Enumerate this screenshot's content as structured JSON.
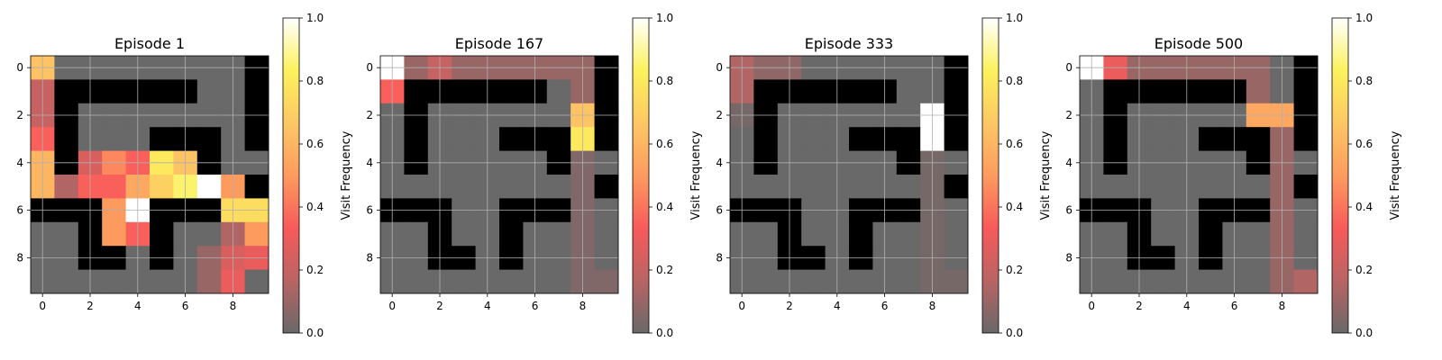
{
  "chart_data": [
    {
      "type": "heatmap",
      "title": "Episode 1",
      "colorbar_label": "Visit Frequency",
      "grid": true,
      "xlim": [
        -0.5,
        9.5
      ],
      "ylim": [
        9.5,
        -0.5
      ],
      "xticks": [
        0,
        2,
        4,
        6,
        8
      ],
      "yticks": [
        0,
        2,
        4,
        6,
        8
      ],
      "colorbar_ticks": [
        "0.0",
        "0.2",
        "0.4",
        "0.6",
        "0.8",
        "1.0"
      ],
      "colorbar_range": [
        0.0,
        1.0
      ],
      "values": [
        [
          0.65,
          0.0,
          0.0,
          0.0,
          0.0,
          0.0,
          0.0,
          0.0,
          0.0,
          -1
        ],
        [
          0.2,
          -1,
          -1,
          -1,
          -1,
          -1,
          -1,
          0.0,
          0.0,
          -1
        ],
        [
          0.2,
          -1,
          0.0,
          0.0,
          0.0,
          0.0,
          0.0,
          0.0,
          0.0,
          -1
        ],
        [
          0.35,
          -1,
          0.0,
          0.0,
          0.0,
          -1,
          -1,
          -1,
          0.0,
          -1
        ],
        [
          0.6,
          -1,
          0.25,
          0.45,
          0.35,
          0.8,
          0.65,
          -1,
          0.0,
          0.0
        ],
        [
          0.6,
          0.15,
          0.35,
          0.35,
          0.55,
          0.7,
          0.85,
          1.0,
          0.5,
          -1
        ],
        [
          -1,
          -1,
          -1,
          0.5,
          1.0,
          -1,
          -1,
          -1,
          0.75,
          0.75
        ],
        [
          0.0,
          0.0,
          -1,
          0.5,
          0.35,
          -1,
          0.0,
          0.0,
          0.15,
          0.5
        ],
        [
          0.0,
          0.0,
          -1,
          -1,
          0.0,
          -1,
          0.0,
          0.1,
          0.25,
          0.3
        ],
        [
          0.0,
          0.0,
          0.0,
          0.0,
          0.0,
          0.0,
          0.0,
          0.1,
          0.3,
          0.0
        ]
      ]
    },
    {
      "type": "heatmap",
      "title": "Episode 167",
      "colorbar_label": "Visit Frequency",
      "grid": true,
      "xlim": [
        -0.5,
        9.5
      ],
      "ylim": [
        9.5,
        -0.5
      ],
      "xticks": [
        0,
        2,
        4,
        6,
        8
      ],
      "yticks": [
        0,
        2,
        4,
        6,
        8
      ],
      "colorbar_ticks": [
        "0.0",
        "0.2",
        "0.4",
        "0.6",
        "0.8",
        "1.0"
      ],
      "colorbar_range": [
        0.0,
        1.0
      ],
      "values": [
        [
          1.0,
          0.1,
          0.2,
          0.1,
          0.1,
          0.1,
          0.1,
          0.1,
          0.1,
          -1
        ],
        [
          0.35,
          -1,
          -1,
          -1,
          -1,
          -1,
          -1,
          0.0,
          0.1,
          -1
        ],
        [
          0.0,
          -1,
          0.0,
          0.0,
          0.0,
          0.0,
          0.0,
          0.0,
          0.65,
          -1
        ],
        [
          0.0,
          -1,
          0.0,
          0.0,
          0.0,
          -1,
          -1,
          -1,
          0.8,
          -1
        ],
        [
          0.0,
          -1,
          0.0,
          0.0,
          0.0,
          0.0,
          0.0,
          -1,
          0.05,
          0.0
        ],
        [
          0.0,
          0.0,
          0.0,
          0.0,
          0.0,
          0.0,
          0.0,
          0.0,
          0.05,
          -1
        ],
        [
          -1,
          -1,
          -1,
          0.0,
          0.0,
          -1,
          -1,
          -1,
          0.05,
          0.0
        ],
        [
          0.0,
          0.0,
          -1,
          0.0,
          0.0,
          -1,
          0.0,
          0.0,
          0.05,
          0.0
        ],
        [
          0.0,
          0.0,
          -1,
          -1,
          0.0,
          -1,
          0.0,
          0.0,
          0.05,
          0.0
        ],
        [
          0.0,
          0.0,
          0.0,
          0.0,
          0.0,
          0.0,
          0.0,
          0.0,
          0.05,
          0.05
        ]
      ]
    },
    {
      "type": "heatmap",
      "title": "Episode 333",
      "colorbar_label": "Visit Frequency",
      "grid": true,
      "xlim": [
        -0.5,
        9.5
      ],
      "ylim": [
        9.5,
        -0.5
      ],
      "xticks": [
        0,
        2,
        4,
        6,
        8
      ],
      "yticks": [
        0,
        2,
        4,
        6,
        8
      ],
      "colorbar_ticks": [
        "0.0",
        "0.2",
        "0.4",
        "0.6",
        "0.8",
        "1.0"
      ],
      "colorbar_range": [
        0.0,
        1.0
      ],
      "values": [
        [
          0.15,
          0.08,
          0.08,
          0.0,
          0.0,
          0.0,
          0.0,
          0.0,
          0.0,
          -1
        ],
        [
          0.15,
          -1,
          -1,
          -1,
          -1,
          -1,
          -1,
          0.0,
          0.0,
          -1
        ],
        [
          0.03,
          -1,
          0.0,
          0.0,
          0.0,
          0.0,
          0.0,
          0.0,
          1.0,
          -1
        ],
        [
          0.0,
          -1,
          0.0,
          0.0,
          0.0,
          -1,
          -1,
          -1,
          1.0,
          -1
        ],
        [
          0.0,
          -1,
          0.0,
          0.0,
          0.0,
          0.0,
          0.0,
          -1,
          0.03,
          0.0
        ],
        [
          0.0,
          0.0,
          0.0,
          0.0,
          0.0,
          0.0,
          0.0,
          0.0,
          0.03,
          -1
        ],
        [
          -1,
          -1,
          -1,
          0.0,
          0.0,
          -1,
          -1,
          -1,
          0.03,
          0.0
        ],
        [
          0.0,
          0.0,
          -1,
          0.0,
          0.0,
          -1,
          0.0,
          0.0,
          0.03,
          0.0
        ],
        [
          0.0,
          0.0,
          -1,
          -1,
          0.0,
          -1,
          0.0,
          0.0,
          0.03,
          0.0
        ],
        [
          0.0,
          0.0,
          0.0,
          0.0,
          0.0,
          0.0,
          0.0,
          0.0,
          0.03,
          0.03
        ]
      ]
    },
    {
      "type": "heatmap",
      "title": "Episode 500",
      "colorbar_label": "Visit Frequency",
      "grid": true,
      "xlim": [
        -0.5,
        9.5
      ],
      "ylim": [
        9.5,
        -0.5
      ],
      "xticks": [
        0,
        2,
        4,
        6,
        8
      ],
      "yticks": [
        0,
        2,
        4,
        6,
        8
      ],
      "colorbar_ticks": [
        "0.0",
        "0.2",
        "0.4",
        "0.6",
        "0.8",
        "1.0"
      ],
      "colorbar_range": [
        0.0,
        1.0
      ],
      "values": [
        [
          1.0,
          0.3,
          0.1,
          0.1,
          0.1,
          0.1,
          0.1,
          0.1,
          0.0,
          -1
        ],
        [
          0.0,
          -1,
          -1,
          -1,
          -1,
          -1,
          -1,
          0.1,
          0.0,
          -1
        ],
        [
          0.0,
          -1,
          0.0,
          0.0,
          0.0,
          0.0,
          0.0,
          0.55,
          0.55,
          -1
        ],
        [
          0.0,
          -1,
          0.0,
          0.0,
          0.0,
          -1,
          -1,
          -1,
          0.1,
          -1
        ],
        [
          0.0,
          -1,
          0.0,
          0.0,
          0.0,
          0.0,
          0.0,
          -1,
          0.1,
          0.0
        ],
        [
          0.0,
          0.0,
          0.0,
          0.0,
          0.0,
          0.0,
          0.0,
          0.0,
          0.1,
          -1
        ],
        [
          -1,
          -1,
          -1,
          0.0,
          0.0,
          -1,
          -1,
          -1,
          0.1,
          0.0
        ],
        [
          0.0,
          0.0,
          -1,
          0.0,
          0.0,
          -1,
          0.0,
          0.0,
          0.1,
          0.0
        ],
        [
          0.0,
          0.0,
          -1,
          -1,
          0.0,
          -1,
          0.0,
          0.0,
          0.1,
          0.0
        ],
        [
          0.0,
          0.0,
          0.0,
          0.0,
          0.0,
          0.0,
          0.0,
          0.0,
          0.1,
          0.15
        ]
      ]
    }
  ],
  "colors": {
    "wall": "#000000",
    "gradient_stops": [
      "#696969",
      "#b96464",
      "#f85a5a",
      "#fd9b5f",
      "#fdc764",
      "#fcf25c",
      "#ffffff"
    ],
    "grid": "#b0b0b0"
  }
}
